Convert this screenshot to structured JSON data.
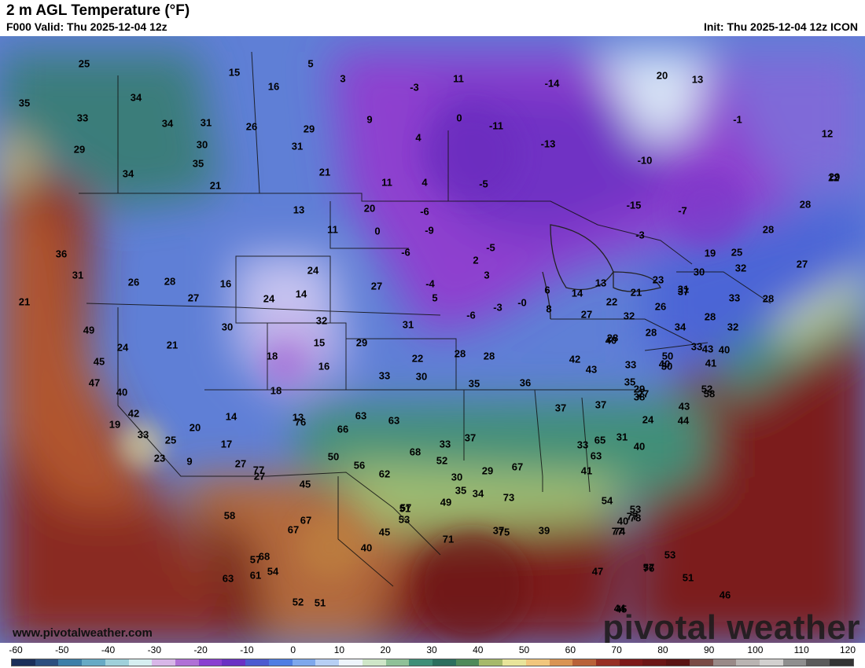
{
  "header": {
    "title": "2 m AGL Temperature (°F)",
    "valid": "F000 Valid: Thu 2025-12-04 12z",
    "init": "Init: Thu 2025-12-04 12z ICON"
  },
  "footer": {
    "website": "www.pivotalweather.com",
    "brand": "pivotal weather"
  },
  "legend": {
    "ticks": [
      "-60",
      "-50",
      "-40",
      "-30",
      "-20",
      "-10",
      "0",
      "10",
      "20",
      "30",
      "40",
      "50",
      "60",
      "70",
      "80",
      "90",
      "100",
      "110",
      "120"
    ],
    "colors": [
      "#1b2f5a",
      "#2c4f7f",
      "#3e7fa8",
      "#67aac5",
      "#9fd0da",
      "#d6eef0",
      "#d8b7e8",
      "#b070d6",
      "#8a3fd0",
      "#6a32c4",
      "#4c5bd0",
      "#4f7ee3",
      "#7ea8ec",
      "#b7cff4",
      "#eef4fb",
      "#cfe6c8",
      "#8fc198",
      "#3f8f78",
      "#2c6f5e",
      "#4f8a5a",
      "#a7b96a",
      "#e8e49a",
      "#f1c67d",
      "#d99454",
      "#b8623a",
      "#962f24",
      "#7c1a1a",
      "#6b1717",
      "#5a1414",
      "#7a4b46",
      "#9a8a88",
      "#b9b4b2",
      "#d2d0cf",
      "#8f8f8f",
      "#5b5b5b",
      "#333333"
    ]
  },
  "map_values": [
    "25",
    "15",
    "5",
    "35",
    "33",
    "34",
    "34",
    "31",
    "29",
    "30",
    "26",
    "34",
    "35",
    "21",
    "29",
    "31",
    "21",
    "16",
    "11",
    "3",
    "-3",
    "9",
    "0",
    "-11",
    "-14",
    "-13",
    "4",
    "4",
    "11",
    "-5",
    "-10",
    "-15",
    "-7",
    "-3",
    "-1",
    "12",
    "13",
    "20",
    "12",
    "29",
    "28",
    "28",
    "19",
    "25",
    "32",
    "27",
    "28",
    "33",
    "30",
    "37",
    "36",
    "31",
    "21",
    "26",
    "28",
    "27",
    "16",
    "24",
    "24",
    "14",
    "13",
    "20",
    "11",
    "0",
    "-6",
    "-6",
    "-9",
    "-4",
    "3",
    "2",
    "-5",
    "5",
    "-6",
    "-3",
    "-0",
    "6",
    "8",
    "14",
    "13",
    "22",
    "21",
    "23",
    "31",
    "26",
    "32",
    "28",
    "27",
    "28",
    "28",
    "32",
    "34",
    "40",
    "33",
    "29",
    "27",
    "30",
    "24",
    "31",
    "40",
    "44",
    "43",
    "43",
    "41",
    "50",
    "58",
    "52",
    "49",
    "45",
    "47",
    "40",
    "42",
    "19",
    "33",
    "25",
    "23",
    "9",
    "20",
    "17",
    "27",
    "27",
    "14",
    "13",
    "18",
    "18",
    "15",
    "16",
    "21",
    "24",
    "30",
    "32",
    "31",
    "29",
    "27",
    "22",
    "28",
    "28",
    "30",
    "33",
    "35",
    "36",
    "37",
    "37",
    "42",
    "40",
    "43",
    "33",
    "35",
    "40",
    "38",
    "33",
    "41",
    "40",
    "53",
    "54",
    "65",
    "63",
    "67",
    "73",
    "75",
    "78",
    "77",
    "77",
    "76",
    "74",
    "57",
    "53",
    "51",
    "46",
    "45",
    "47",
    "44",
    "39",
    "37",
    "34",
    "35",
    "29",
    "30",
    "33",
    "37",
    "56",
    "50",
    "52",
    "63",
    "68",
    "63",
    "66",
    "76",
    "77",
    "49",
    "51",
    "71",
    "62",
    "53",
    "57",
    "58",
    "57",
    "61",
    "63",
    "67",
    "67",
    "54",
    "51",
    "52",
    "68",
    "45",
    "40",
    "45"
  ]
}
